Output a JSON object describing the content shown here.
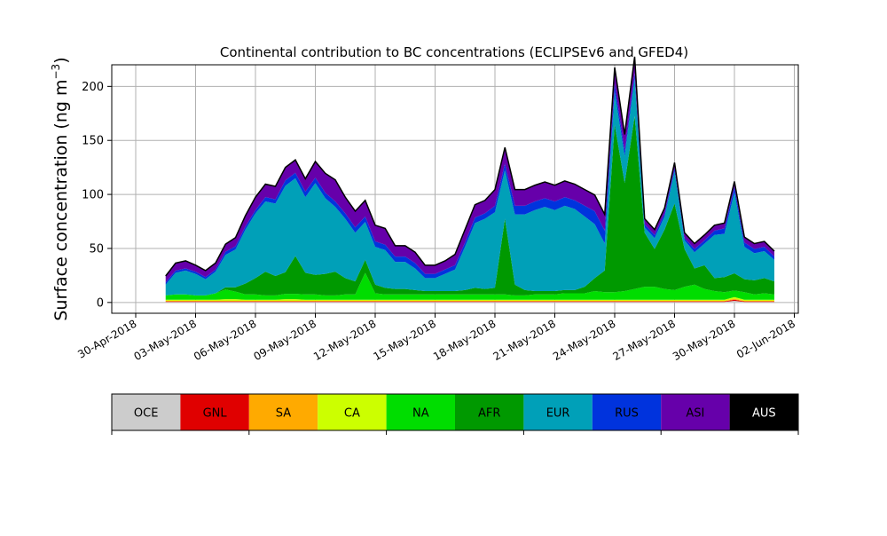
{
  "chart_data": {
    "type": "area",
    "stacked": true,
    "title": "Continental contribution to BC concentrations (ECLIPSEv6 and GFED4)",
    "ylabel_text": "Surface concentration (ng m",
    "ylabel_unit_sup": "−3",
    "ylabel_close": ")",
    "ylim": [
      -10,
      220
    ],
    "yticks": [
      0,
      50,
      100,
      150,
      200
    ],
    "grid": true,
    "xlim_days": [
      -1.2,
      33.2
    ],
    "xtick_labels": [
      "30-Apr-2018",
      "03-May-2018",
      "06-May-2018",
      "09-May-2018",
      "12-May-2018",
      "15-May-2018",
      "18-May-2018",
      "21-May-2018",
      "24-May-2018",
      "27-May-2018",
      "30-May-2018",
      "02-Jun-2018"
    ],
    "x": [
      "01-May-2018 12:00",
      "02-May-2018 00:00",
      "02-May-2018 12:00",
      "03-May-2018 00:00",
      "03-May-2018 12:00",
      "04-May-2018 00:00",
      "04-May-2018 12:00",
      "05-May-2018 00:00",
      "05-May-2018 12:00",
      "06-May-2018 00:00",
      "06-May-2018 12:00",
      "07-May-2018 00:00",
      "07-May-2018 12:00",
      "08-May-2018 00:00",
      "08-May-2018 12:00",
      "09-May-2018 00:00",
      "09-May-2018 12:00",
      "10-May-2018 00:00",
      "10-May-2018 12:00",
      "11-May-2018 00:00",
      "11-May-2018 12:00",
      "12-May-2018 00:00",
      "12-May-2018 12:00",
      "13-May-2018 00:00",
      "13-May-2018 12:00",
      "14-May-2018 00:00",
      "14-May-2018 12:00",
      "15-May-2018 00:00",
      "15-May-2018 12:00",
      "16-May-2018 00:00",
      "16-May-2018 12:00",
      "17-May-2018 00:00",
      "17-May-2018 12:00",
      "18-May-2018 00:00",
      "18-May-2018 12:00",
      "19-May-2018 00:00",
      "19-May-2018 12:00",
      "20-May-2018 00:00",
      "20-May-2018 12:00",
      "21-May-2018 00:00",
      "21-May-2018 12:00",
      "22-May-2018 00:00",
      "22-May-2018 12:00",
      "23-May-2018 00:00",
      "23-May-2018 12:00",
      "24-May-2018 00:00",
      "24-May-2018 12:00",
      "25-May-2018 00:00",
      "25-May-2018 12:00",
      "26-May-2018 00:00",
      "26-May-2018 12:00",
      "27-May-2018 00:00",
      "27-May-2018 12:00",
      "28-May-2018 00:00",
      "28-May-2018 12:00",
      "29-May-2018 00:00",
      "29-May-2018 12:00",
      "30-May-2018 00:00",
      "30-May-2018 12:00",
      "31-May-2018 00:00",
      "31-May-2018 12:00",
      "01-Jun-2018 00:00"
    ],
    "series": [
      {
        "name": "OCE",
        "color": "#cccccc",
        "values": [
          0.5,
          0.5,
          0.5,
          0.5,
          0.5,
          0.5,
          0.5,
          0.5,
          0.5,
          0.5,
          0.5,
          0.5,
          0.5,
          0.5,
          0.5,
          0.5,
          0.5,
          0.5,
          0.5,
          0.5,
          0.5,
          0.5,
          0.5,
          0.5,
          0.5,
          0.5,
          0.5,
          0.5,
          0.5,
          0.5,
          0.5,
          0.5,
          0.5,
          0.5,
          0.5,
          0.5,
          0.5,
          0.5,
          0.5,
          0.5,
          0.5,
          0.5,
          0.5,
          0.5,
          0.5,
          0.5,
          0.5,
          0.5,
          0.5,
          0.5,
          0.5,
          0.5,
          0.5,
          0.5,
          0.5,
          0.5,
          0.5,
          1.5,
          0.5,
          0.5,
          0.5,
          0.5
        ]
      },
      {
        "name": "GNL",
        "color": "#e00000",
        "values": [
          0.5,
          0.5,
          0.5,
          0.5,
          0.5,
          0.5,
          0.5,
          0.5,
          0.5,
          0.5,
          0.5,
          0.5,
          0.5,
          0.5,
          0.5,
          0.5,
          0.5,
          0.5,
          0.5,
          0.5,
          0.5,
          0.5,
          0.5,
          0.5,
          0.5,
          0.5,
          0.5,
          0.5,
          0.5,
          0.5,
          0.5,
          0.5,
          0.5,
          0.5,
          0.5,
          0.5,
          0.5,
          0.5,
          0.5,
          0.5,
          0.5,
          0.5,
          0.5,
          0.5,
          0.5,
          0.5,
          0.5,
          0.5,
          0.5,
          0.5,
          0.5,
          0.5,
          0.5,
          0.5,
          0.5,
          0.5,
          0.5,
          1.0,
          0.5,
          0.5,
          0.5,
          0.5
        ]
      },
      {
        "name": "SA",
        "color": "#ffaa00",
        "values": [
          0.5,
          0.5,
          0.5,
          0.5,
          0.5,
          0.5,
          0.5,
          0.5,
          0.5,
          0.5,
          0.5,
          0.5,
          0.5,
          0.5,
          0.5,
          0.5,
          0.5,
          0.5,
          0.5,
          0.5,
          0.5,
          0.5,
          0.5,
          0.5,
          0.5,
          0.5,
          0.5,
          0.5,
          0.5,
          0.5,
          0.5,
          0.5,
          0.5,
          0.5,
          0.5,
          0.5,
          0.5,
          0.5,
          0.5,
          0.5,
          0.5,
          0.5,
          0.5,
          0.5,
          0.5,
          0.5,
          0.5,
          0.5,
          0.5,
          0.5,
          0.5,
          0.5,
          0.5,
          0.5,
          0.5,
          0.5,
          0.5,
          1.0,
          0.5,
          0.5,
          0.5,
          0.5
        ]
      },
      {
        "name": "CA",
        "color": "#ccff00",
        "values": [
          1,
          1,
          1,
          1,
          1,
          1,
          1.5,
          1.5,
          1,
          1,
          1,
          1,
          1.5,
          1.5,
          1,
          1,
          1,
          1,
          1,
          1,
          1,
          1,
          1,
          1,
          1,
          1,
          1,
          1,
          1,
          1,
          1,
          1,
          1,
          1,
          1,
          1,
          1,
          1,
          1,
          1,
          1,
          1,
          1,
          1,
          1,
          1,
          1,
          1,
          1,
          1,
          1,
          1,
          1,
          1,
          1,
          1,
          1,
          1.5,
          1,
          1,
          1,
          1
        ]
      },
      {
        "name": "NA",
        "color": "#00dd00",
        "values": [
          4,
          5,
          5,
          4,
          4,
          6,
          9,
          7,
          5,
          5,
          4,
          4,
          5,
          5,
          5,
          5,
          4,
          4,
          5,
          5,
          25,
          6,
          5,
          5,
          5,
          5,
          5,
          5,
          5,
          5,
          5,
          5,
          5,
          5,
          5,
          4,
          4,
          5,
          5,
          5,
          6,
          6,
          6,
          8,
          7,
          7,
          8,
          10,
          12,
          12,
          10,
          9,
          12,
          14,
          10,
          8,
          7,
          6,
          7,
          5,
          6,
          5
        ]
      },
      {
        "name": "AFR",
        "color": "#009900",
        "values": [
          0,
          0,
          0,
          0,
          0,
          0,
          2,
          4,
          10,
          15,
          22,
          18,
          20,
          35,
          20,
          18,
          20,
          22,
          15,
          12,
          12,
          8,
          6,
          5,
          5,
          4,
          3,
          3,
          3,
          3,
          4,
          6,
          5,
          6,
          70,
          10,
          5,
          3,
          3,
          3,
          3,
          3,
          6,
          12,
          20,
          155,
          100,
          160,
          50,
          35,
          55,
          80,
          35,
          15,
          22,
          12,
          14,
          16,
          12,
          13,
          14,
          12
        ]
      },
      {
        "name": "EUR",
        "color": "#00a0b8",
        "values": [
          10,
          20,
          22,
          20,
          15,
          20,
          30,
          35,
          50,
          60,
          65,
          67,
          80,
          72,
          70,
          85,
          70,
          60,
          55,
          45,
          35,
          35,
          35,
          25,
          25,
          20,
          12,
          12,
          16,
          20,
          40,
          60,
          65,
          70,
          45,
          65,
          70,
          75,
          78,
          75,
          78,
          75,
          65,
          50,
          25,
          30,
          25,
          35,
          5,
          10,
          12,
          30,
          8,
          15,
          20,
          40,
          40,
          75,
          30,
          25,
          25,
          20
        ]
      },
      {
        "name": "RUS",
        "color": "#0033dd",
        "values": [
          2,
          2,
          2,
          2,
          2,
          2,
          3,
          3,
          3,
          3,
          4,
          4,
          5,
          5,
          5,
          5,
          5,
          5,
          5,
          5,
          5,
          5,
          5,
          5,
          5,
          5,
          4,
          4,
          4,
          4,
          4,
          5,
          5,
          6,
          6,
          8,
          8,
          8,
          8,
          8,
          8,
          8,
          10,
          12,
          12,
          8,
          5,
          5,
          3,
          3,
          3,
          3,
          2,
          3,
          3,
          4,
          5,
          5,
          4,
          4,
          4,
          3
        ]
      },
      {
        "name": "ASI",
        "color": "#6600aa",
        "values": [
          6,
          7,
          7,
          6,
          6,
          6,
          7,
          8,
          10,
          12,
          12,
          12,
          12,
          12,
          12,
          15,
          18,
          20,
          15,
          15,
          15,
          15,
          15,
          10,
          10,
          10,
          8,
          8,
          8,
          10,
          12,
          12,
          12,
          15,
          15,
          15,
          15,
          15,
          15,
          15,
          15,
          15,
          15,
          15,
          15,
          15,
          15,
          15,
          5,
          5,
          5,
          5,
          5,
          5,
          5,
          5,
          5,
          5,
          5,
          5,
          5,
          5
        ]
      },
      {
        "name": "AUS",
        "color": "#000000",
        "values": [
          0,
          0,
          0,
          0,
          0,
          0,
          0,
          0,
          0,
          0,
          0,
          0,
          0,
          0,
          0,
          0,
          0,
          0,
          0,
          0,
          0,
          0,
          0,
          0,
          0,
          0,
          0,
          0,
          0,
          0,
          0,
          0,
          0,
          0,
          0,
          0,
          0,
          0,
          0,
          0,
          0,
          0,
          0,
          0,
          0,
          0,
          0,
          0,
          0,
          0,
          0,
          0,
          0,
          0,
          0,
          0,
          0,
          0,
          0,
          0,
          0,
          0
        ]
      }
    ],
    "legend_position": "below"
  }
}
